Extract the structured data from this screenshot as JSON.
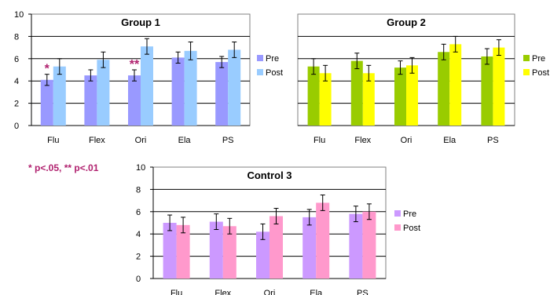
{
  "significance_note": "* p<.05, ** p<.01",
  "colors": {
    "significance": "#b0206e",
    "plot_background": "#c0c0c0"
  },
  "chart_data": [
    {
      "type": "bar",
      "title": "Group 1",
      "categories": [
        "Flu",
        "Flex",
        "Ori",
        "Ela",
        "PS"
      ],
      "ylim": [
        0,
        10
      ],
      "yticks": [
        0,
        2,
        4,
        6,
        8,
        10
      ],
      "grid": true,
      "legend": "right",
      "series": [
        {
          "name": "Pre",
          "color": "#9999ff",
          "values": [
            4.1,
            4.5,
            4.5,
            6.1,
            5.7
          ],
          "errors": [
            0.5,
            0.5,
            0.5,
            0.5,
            0.5
          ]
        },
        {
          "name": "Post",
          "color": "#99ccff",
          "values": [
            5.3,
            5.9,
            7.1,
            6.7,
            6.8
          ],
          "errors": [
            0.7,
            0.7,
            0.7,
            0.8,
            0.7
          ]
        }
      ],
      "annotations": [
        {
          "category": "Flu",
          "label": "*"
        },
        {
          "category": "Ori",
          "label": "**"
        }
      ]
    },
    {
      "type": "bar",
      "title": "Group 2",
      "categories": [
        "Flu",
        "Flex",
        "Ori",
        "Ela",
        "PS"
      ],
      "ylim": [
        0,
        10
      ],
      "yticks": [
        0,
        2,
        4,
        6,
        8,
        10
      ],
      "grid": true,
      "legend": "right",
      "series": [
        {
          "name": "Pre",
          "color": "#99cc00",
          "values": [
            5.3,
            5.8,
            5.2,
            6.6,
            6.2
          ],
          "errors": [
            0.7,
            0.7,
            0.6,
            0.7,
            0.7
          ]
        },
        {
          "name": "Post",
          "color": "#ffff00",
          "values": [
            4.7,
            4.7,
            5.4,
            7.3,
            7.0
          ],
          "errors": [
            0.7,
            0.7,
            0.7,
            0.7,
            0.7
          ]
        }
      ]
    },
    {
      "type": "bar",
      "title": "Control 3",
      "categories": [
        "Flu",
        "Flex",
        "Ori",
        "Ela",
        "PS"
      ],
      "ylim": [
        0,
        10
      ],
      "yticks": [
        0,
        2,
        4,
        6,
        8,
        10
      ],
      "grid": true,
      "legend": "right",
      "series": [
        {
          "name": "Pre",
          "color": "#cc99ff",
          "values": [
            5.0,
            5.1,
            4.2,
            5.5,
            5.8
          ],
          "errors": [
            0.7,
            0.7,
            0.7,
            0.7,
            0.7
          ]
        },
        {
          "name": "Post",
          "color": "#ff99cc",
          "values": [
            4.8,
            4.7,
            5.6,
            6.8,
            6.0
          ],
          "errors": [
            0.7,
            0.7,
            0.7,
            0.7,
            0.7
          ]
        }
      ]
    }
  ]
}
